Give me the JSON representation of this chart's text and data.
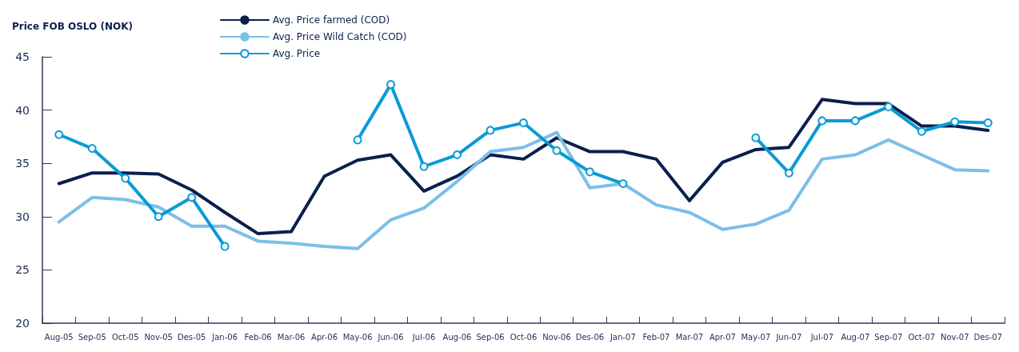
{
  "chart_data": {
    "type": "line",
    "ylabel": "Price FOB OSLO (NOK)",
    "categories": [
      "Aug-05",
      "Sep-05",
      "Oct-05",
      "Nov-05",
      "Des-05",
      "Jan-06",
      "Feb-06",
      "Mar-06",
      "Apr-06",
      "May-06",
      "Jun-06",
      "Jul-06",
      "Aug-06",
      "Sep-06",
      "Oct-06",
      "Nov-06",
      "Des-06",
      "Jan-07",
      "Feb-07",
      "Mar-07",
      "Apr-07",
      "May-07",
      "Jun-07",
      "Jul-07",
      "Aug-07",
      "Sep-07",
      "Oct-07",
      "Nov-07",
      "Des-07"
    ],
    "series": [
      {
        "name": "Avg. Price farmed (COD)",
        "color": "#0a1f4d",
        "marker": "none",
        "values": [
          33.1,
          34.1,
          34.1,
          34.0,
          32.5,
          30.4,
          28.4,
          28.6,
          33.8,
          35.3,
          35.8,
          32.4,
          33.8,
          35.8,
          35.4,
          37.4,
          36.1,
          36.1,
          35.4,
          31.5,
          35.1,
          36.3,
          36.5,
          41.0,
          40.6,
          40.6,
          38.5,
          38.5,
          38.1
        ]
      },
      {
        "name": "Avg. Price Wild Catch (COD)",
        "color": "#7bbfe8",
        "marker": "none",
        "values": [
          29.5,
          31.8,
          31.6,
          30.9,
          29.1,
          29.1,
          27.7,
          27.5,
          27.2,
          27.0,
          29.7,
          30.8,
          33.3,
          36.1,
          36.5,
          37.9,
          32.7,
          33.1,
          31.1,
          30.4,
          28.8,
          29.3,
          30.6,
          35.4,
          35.8,
          37.2,
          35.8,
          34.4,
          34.3
        ]
      },
      {
        "name": "Avg. Price",
        "color": "#0a9ad7",
        "marker": "circle",
        "values": [
          37.7,
          36.4,
          33.6,
          30.0,
          31.8,
          27.2,
          null,
          null,
          null,
          37.2,
          42.4,
          34.7,
          35.8,
          38.1,
          38.8,
          36.2,
          34.2,
          33.1,
          null,
          null,
          null,
          37.4,
          34.1,
          39.0,
          39.0,
          40.3,
          38.0,
          38.9,
          38.8
        ]
      }
    ],
    "ylim": [
      20,
      45
    ],
    "yticks": [
      20,
      25,
      30,
      35,
      40,
      45
    ],
    "grid": false,
    "legend": "top",
    "line_style": "solid"
  }
}
